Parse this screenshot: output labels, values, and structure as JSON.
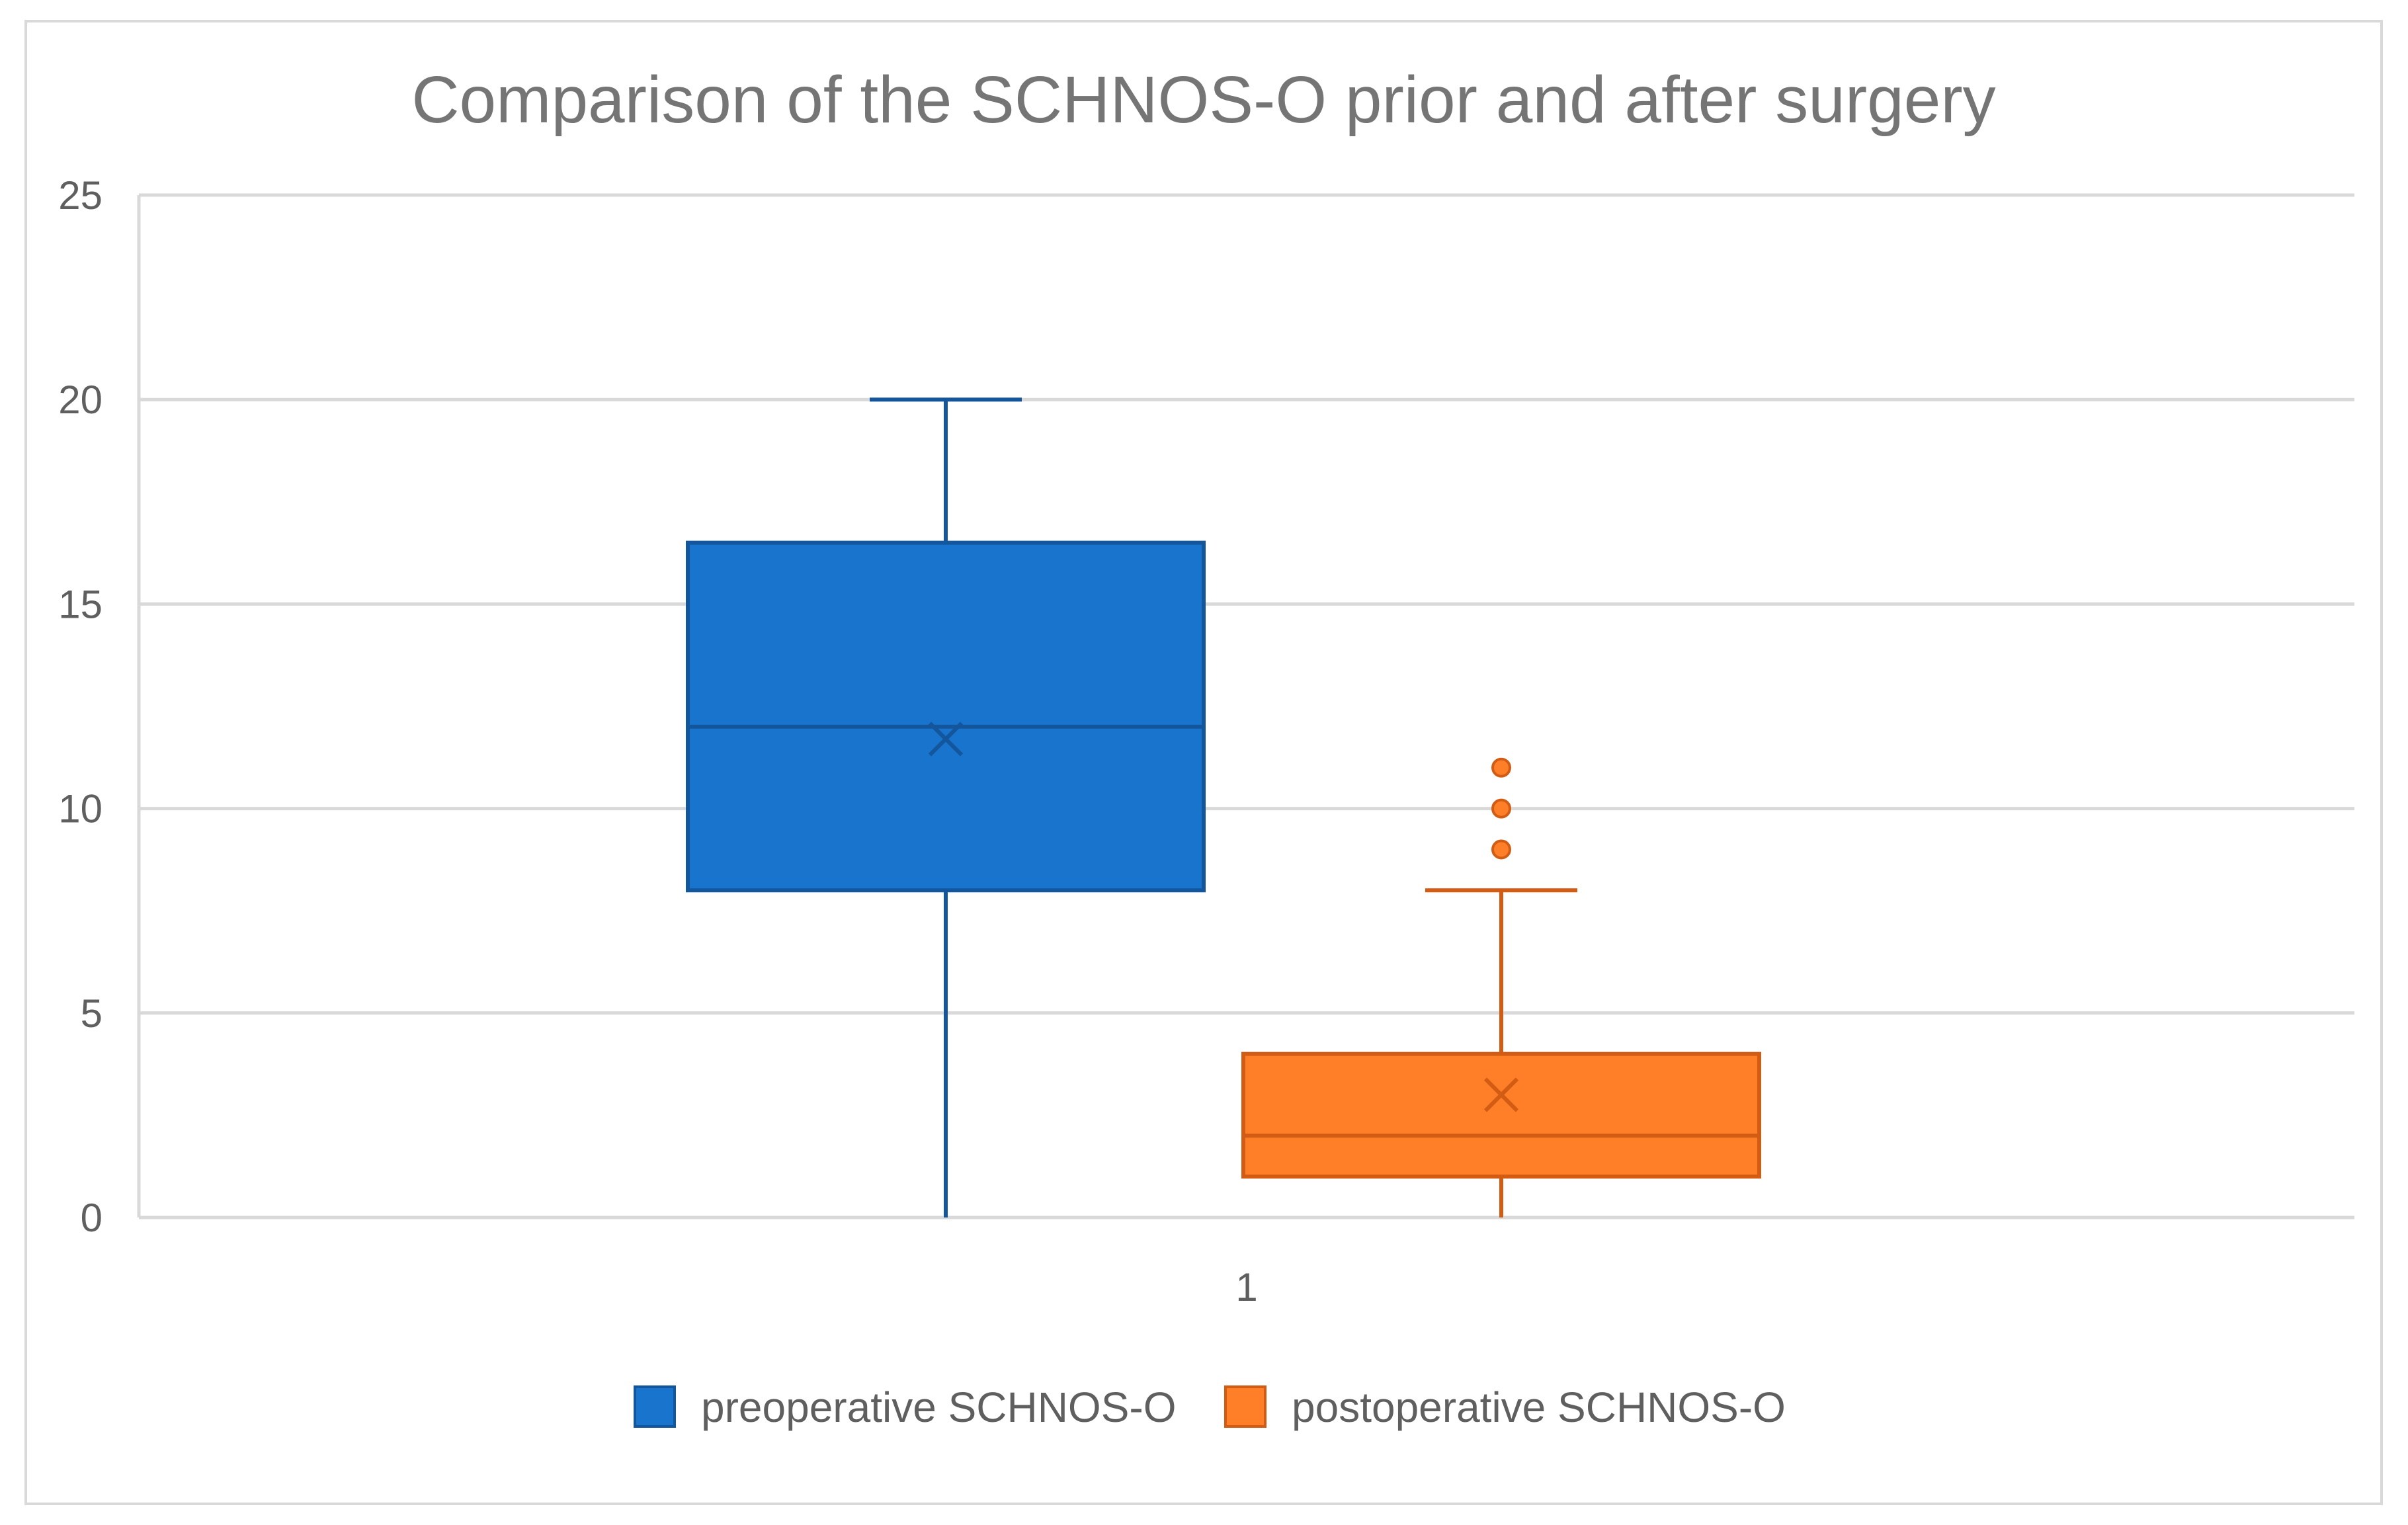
{
  "chart_data": {
    "type": "box",
    "title": "Comparison of the SCHNOS-O prior and after surgery",
    "xlabel": "",
    "ylabel": "",
    "categories": [
      "1"
    ],
    "ylim": [
      0,
      25
    ],
    "yticks": [
      0,
      5,
      10,
      15,
      20,
      25
    ],
    "grid": true,
    "legend_position": "bottom",
    "series": [
      {
        "name": "preoperative SCHNOS-O",
        "color": "#1874cd",
        "edge_color": "#14569c",
        "min": 0,
        "q1": 8,
        "median": 12,
        "q3": 16.5,
        "max": 20,
        "mean": 11.7,
        "outliers": []
      },
      {
        "name": "postoperative SCHNOS-O",
        "color": "#fe7f28",
        "edge_color": "#d35c14",
        "min": 0,
        "q1": 1,
        "median": 2,
        "q3": 4,
        "max": 8,
        "mean": 3,
        "outliers": [
          9,
          10,
          11
        ]
      }
    ]
  },
  "colors": {
    "gridline": "#d9d9d9",
    "frame": "#d9d9d9",
    "text": "#5f5f5f",
    "title": "#757575"
  }
}
